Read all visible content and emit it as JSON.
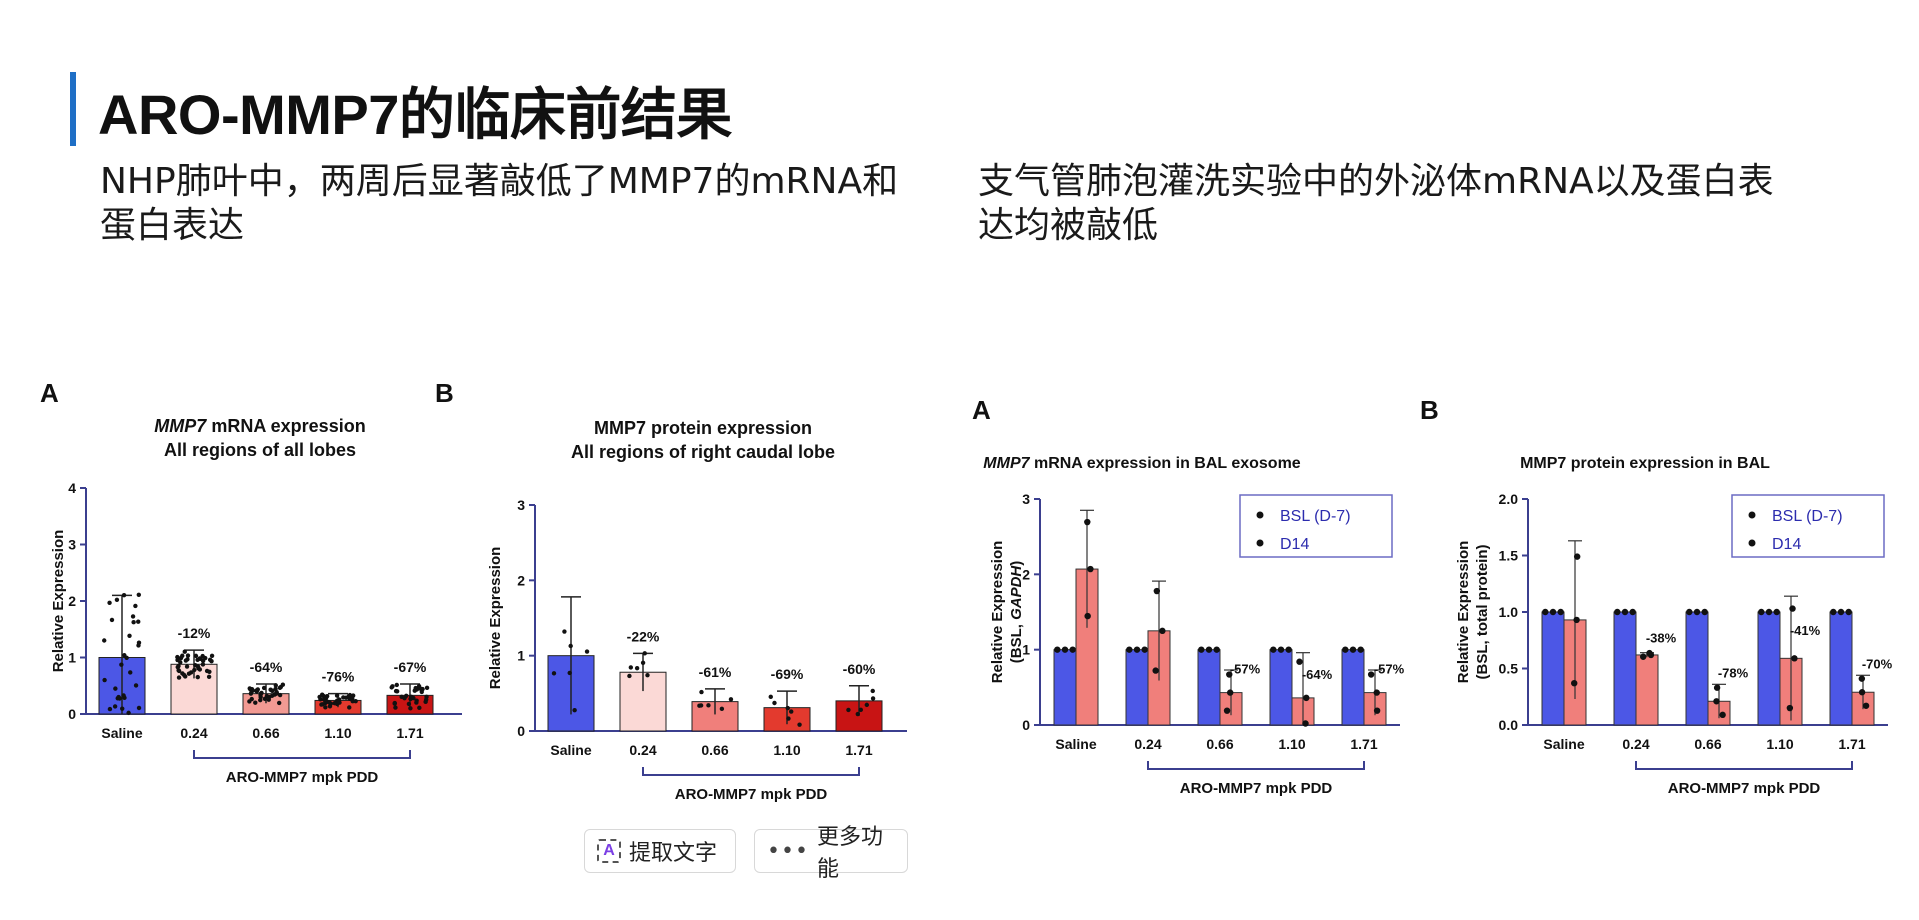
{
  "title": "ARO-MMP7的临床前结果",
  "desc_left": "NHP肺叶中，两周后显著敲低了MMP7的mRNA和蛋白表达",
  "desc_right": "支气管肺泡灌洗实验中的外泌体mRNA以及蛋白表达均被敲低",
  "toolbar": {
    "extract_label": "提取文字",
    "more_label": "更多功能"
  },
  "colors": {
    "accent": "#1f6fc6",
    "blue": "#4c57e6",
    "salmon": "#f07f7b",
    "axis": "#3b3f8f",
    "legend_text": "#2c2cae"
  },
  "chart_data": [
    {
      "panel": "A",
      "type": "bar",
      "title_italic": "MMP7",
      "title_rest": " mRNA expression",
      "subtitle": "All regions of all lobes",
      "ylabel": "Relative Expression",
      "ylim": [
        0,
        4
      ],
      "yticks": [
        "0",
        "1",
        "2",
        "3",
        "4"
      ],
      "categories": [
        "Saline",
        "0.24",
        "0.66",
        "1.10",
        "1.71"
      ],
      "values": [
        1.0,
        0.88,
        0.36,
        0.24,
        0.33
      ],
      "errors": [
        1.1,
        0.25,
        0.17,
        0.12,
        0.2
      ],
      "bar_colors": [
        "#4c57e6",
        "#fbd9d6",
        "#f29a93",
        "#e33a2e",
        "#c81414"
      ],
      "annotations": [
        "",
        "-12%",
        "-64%",
        "-76%",
        "-67%"
      ],
      "group_label": "ARO-MMP7 mpk PDD"
    },
    {
      "panel": "B",
      "type": "bar",
      "title": "MMP7 protein expression",
      "subtitle": "All regions of right caudal lobe",
      "ylabel": "Relative Expression",
      "ylim": [
        0,
        3
      ],
      "yticks": [
        "0",
        "1",
        "2",
        "3"
      ],
      "categories": [
        "Saline",
        "0.24",
        "0.66",
        "1.10",
        "1.71"
      ],
      "values": [
        1.0,
        0.78,
        0.39,
        0.31,
        0.4
      ],
      "errors": [
        0.78,
        0.25,
        0.17,
        0.22,
        0.2
      ],
      "bar_colors": [
        "#4c57e6",
        "#fbd9d6",
        "#f07f7b",
        "#e33a2e",
        "#c81414"
      ],
      "annotations": [
        "",
        "-22%",
        "-61%",
        "-69%",
        "-60%"
      ],
      "group_label": "ARO-MMP7 mpk PDD"
    },
    {
      "panel": "A",
      "type": "bar",
      "title_italic": "MMP7",
      "title_rest": " mRNA expression in BAL exosome",
      "ylabel_line1": "Relative Expression",
      "ylabel_line2_prefix": "(BSL, ",
      "ylabel_line2_italic": "GAPDH",
      "ylabel_line2_suffix": ")",
      "ylim": [
        0,
        3
      ],
      "yticks": [
        "0",
        "1",
        "2",
        "3"
      ],
      "categories": [
        "Saline",
        "0.24",
        "0.66",
        "1.10",
        "1.71"
      ],
      "series": [
        {
          "name": "BSL (D-7)",
          "values": [
            1.0,
            1.0,
            1.0,
            1.0,
            1.0
          ],
          "errors": [
            0,
            0,
            0,
            0,
            0
          ]
        },
        {
          "name": "D14",
          "values": [
            2.07,
            1.25,
            0.43,
            0.36,
            0.43
          ],
          "errors": [
            0.78,
            0.66,
            0.3,
            0.6,
            0.3
          ]
        }
      ],
      "annotations": [
        "",
        "",
        "-57%",
        "-64%",
        "-57%"
      ],
      "legend": [
        "BSL (D-7)",
        "D14"
      ],
      "legend_position": "top-right",
      "group_label": "ARO-MMP7 mpk PDD"
    },
    {
      "panel": "B",
      "type": "bar",
      "title": "MMP7 protein expression in BAL",
      "ylabel_line1": "Relative Expression",
      "ylabel_line2": "(BSL, total protein)",
      "ylim": [
        0,
        2
      ],
      "yticks": [
        "0.0",
        "0.5",
        "1.0",
        "1.5",
        "2.0"
      ],
      "categories": [
        "Saline",
        "0.24",
        "0.66",
        "1.10",
        "1.71"
      ],
      "series": [
        {
          "name": "BSL (D-7)",
          "values": [
            1.0,
            1.0,
            1.0,
            1.0,
            1.0
          ],
          "errors": [
            0,
            0,
            0,
            0,
            0
          ]
        },
        {
          "name": "D14",
          "values": [
            0.93,
            0.62,
            0.21,
            0.59,
            0.29
          ],
          "errors": [
            0.7,
            0.02,
            0.15,
            0.55,
            0.15
          ]
        }
      ],
      "annotations": [
        "",
        "-38%",
        "-78%",
        "-41%",
        "-70%"
      ],
      "legend": [
        "BSL (D-7)",
        "D14"
      ],
      "legend_position": "top-right",
      "group_label": "ARO-MMP7 mpk PDD"
    }
  ]
}
